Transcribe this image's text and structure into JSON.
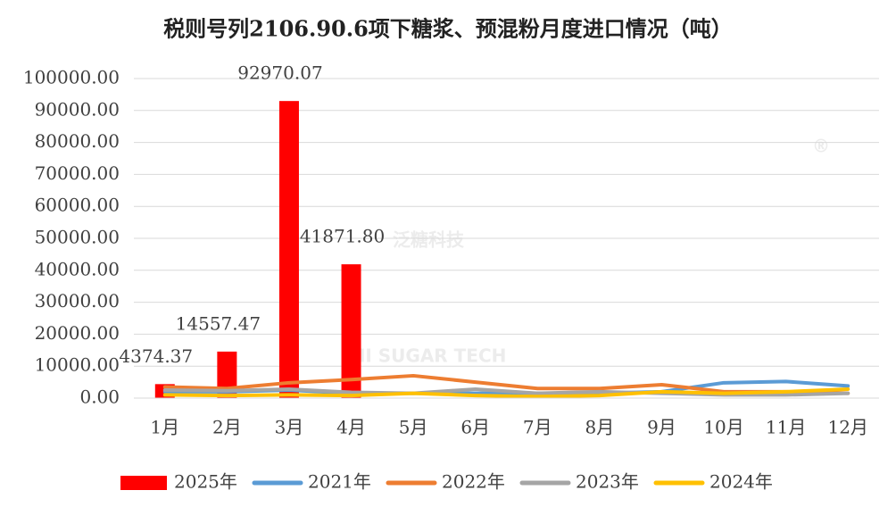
{
  "chart_data": {
    "type": "combo",
    "title": "税则号列2106.90.6项下糖浆、预混粉月度进口情况（吨）",
    "watermark": "泛糖科技",
    "watermark_sub": "HI SUGAR TECH",
    "watermark_mark": "®",
    "categories": [
      "1月",
      "2月",
      "3月",
      "4月",
      "5月",
      "6月",
      "7月",
      "8月",
      "9月",
      "10月",
      "11月",
      "12月"
    ],
    "series": [
      {
        "name": "2025年",
        "kind": "bar",
        "color": "#ff0000",
        "values": [
          4374.37,
          14557.47,
          92970.07,
          41871.8,
          null,
          null,
          null,
          null,
          null,
          null,
          null,
          null
        ],
        "value_labels": [
          "4374.37",
          "14557.47",
          "92970.07",
          "41871.80",
          null,
          null,
          null,
          null,
          null,
          null,
          null,
          null
        ]
      },
      {
        "name": "2021年",
        "kind": "line",
        "color": "#5b9bd5",
        "values": [
          2000,
          2000,
          2500,
          1500,
          1500,
          1500,
          1500,
          1500,
          2000,
          4800,
          5200,
          3800
        ]
      },
      {
        "name": "2022年",
        "kind": "line",
        "color": "#ed7d31",
        "values": [
          3500,
          3000,
          4800,
          5800,
          7000,
          5000,
          3000,
          3000,
          4200,
          2000,
          2000,
          1500
        ]
      },
      {
        "name": "2023年",
        "kind": "line",
        "color": "#a5a5a5",
        "values": [
          2500,
          2300,
          2800,
          1800,
          1500,
          2800,
          1500,
          2000,
          1500,
          1000,
          1000,
          1500
        ]
      },
      {
        "name": "2024年",
        "kind": "line",
        "color": "#ffc000",
        "values": [
          1000,
          800,
          1000,
          800,
          1500,
          800,
          500,
          800,
          2000,
          1500,
          2000,
          2800
        ]
      }
    ],
    "ylim": [
      0,
      100000
    ],
    "yticks": [
      {
        "value": 0,
        "label": "0.00"
      },
      {
        "value": 10000,
        "label": "10000.00"
      },
      {
        "value": 20000,
        "label": "20000.00"
      },
      {
        "value": 30000,
        "label": "30000.00"
      },
      {
        "value": 40000,
        "label": "40000.00"
      },
      {
        "value": 50000,
        "label": "50000.00"
      },
      {
        "value": 60000,
        "label": "60000.00"
      },
      {
        "value": 70000,
        "label": "70000.00"
      },
      {
        "value": 80000,
        "label": "80000.00"
      },
      {
        "value": 90000,
        "label": "90000.00"
      },
      {
        "value": 100000,
        "label": "100000.00"
      }
    ],
    "grid": true,
    "legend": "bottom"
  }
}
